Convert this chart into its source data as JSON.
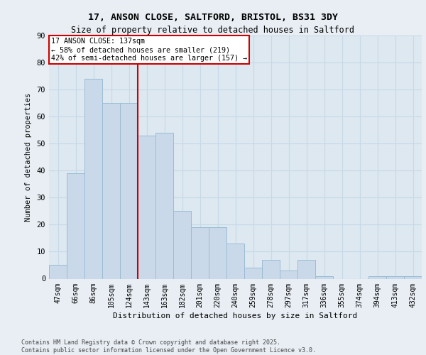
{
  "title_line1": "17, ANSON CLOSE, SALTFORD, BRISTOL, BS31 3DY",
  "title_line2": "Size of property relative to detached houses in Saltford",
  "xlabel": "Distribution of detached houses by size in Saltford",
  "ylabel": "Number of detached properties",
  "categories": [
    "47sqm",
    "66sqm",
    "86sqm",
    "105sqm",
    "124sqm",
    "143sqm",
    "163sqm",
    "182sqm",
    "201sqm",
    "220sqm",
    "240sqm",
    "259sqm",
    "278sqm",
    "297sqm",
    "317sqm",
    "336sqm",
    "355sqm",
    "374sqm",
    "394sqm",
    "413sqm",
    "432sqm"
  ],
  "values": [
    5,
    39,
    74,
    65,
    65,
    53,
    54,
    25,
    19,
    19,
    13,
    4,
    7,
    3,
    7,
    1,
    0,
    0,
    1,
    1,
    1
  ],
  "bar_color": "#c9d9ea",
  "bar_edge_color": "#9bbcd4",
  "grid_color": "#c8d8e8",
  "bg_color": "#dde8f0",
  "property_line_x": 5,
  "annotation_text": "17 ANSON CLOSE: 137sqm\n← 58% of detached houses are smaller (219)\n42% of semi-detached houses are larger (157) →",
  "annotation_box_color": "#ffffff",
  "annotation_border_color": "#cc0000",
  "property_line_color": "#cc0000",
  "yticks": [
    0,
    10,
    20,
    30,
    40,
    50,
    60,
    70,
    80,
    90
  ],
  "ylim": [
    0,
    90
  ],
  "footer": "Contains HM Land Registry data © Crown copyright and database right 2025.\nContains public sector information licensed under the Open Government Licence v3.0."
}
